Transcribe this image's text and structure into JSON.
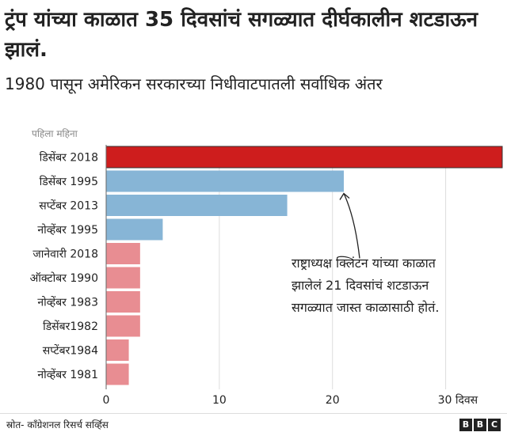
{
  "title": "ट्रंप यांच्या काळात 35 दिवसांचं सगळ्यात दीर्घकालीन शटडाऊन झालं.",
  "subtitle": "1980 पासून अमेरिकन सरकारच्या निधीवाटपातली सर्वाधिक अंतर",
  "source": "स्रोत- काँग्रेशनल रिसर्च सर्व्हिस",
  "logo_letters": [
    "B",
    "B",
    "C"
  ],
  "colors": {
    "highlight": "#ce1d1d",
    "blue": "#87b5d6",
    "pink": "#e88d92",
    "axis": "#999999"
  },
  "chart_data": {
    "type": "bar",
    "orientation": "horizontal",
    "category_header": "पहिला महिना",
    "categories": [
      "डिसेंबर 2018",
      "डिसेंबर 1995",
      "सप्टेंबर 2013",
      "नोव्हेंबर 1995",
      "जानेवारी 2018",
      "ऑक्टोबर 1990",
      "नोव्हेंबर 1983",
      "डिसेंबर1982",
      "सप्टेंबर1984",
      "नोव्हेंबर 1981"
    ],
    "values": [
      35,
      21,
      16,
      5,
      3,
      3,
      3,
      3,
      2,
      2
    ],
    "bar_colors": [
      "#ce1d1d",
      "#87b5d6",
      "#87b5d6",
      "#87b5d6",
      "#e88d92",
      "#e88d92",
      "#e88d92",
      "#e88d92",
      "#e88d92",
      "#e88d92"
    ],
    "xlim": [
      0,
      35
    ],
    "xticks": [
      0,
      10,
      20,
      30
    ],
    "xtick_labels": [
      "0",
      "10",
      "20",
      "30 दिवस"
    ],
    "grid": true,
    "annotation": {
      "lines": [
        "राष्ट्राध्यक्ष क्लिंटन यांच्या काळात",
        "झालेलं 21 दिवसांचं शटडाऊन",
        "सगळ्यात जास्त काळासाठी होतं."
      ],
      "target_category": "डिसेंबर 1995"
    }
  }
}
